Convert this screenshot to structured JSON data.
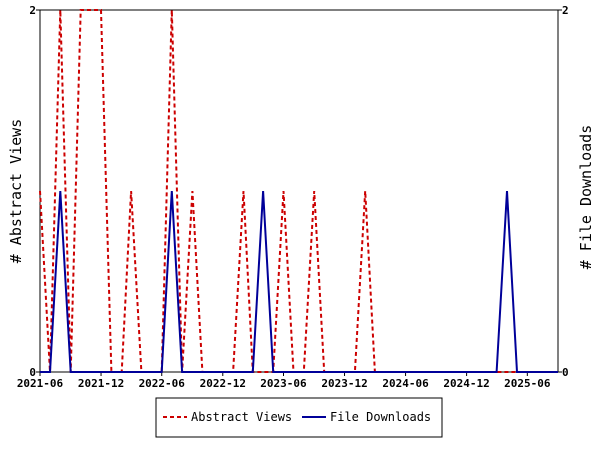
{
  "chart_data": {
    "type": "line",
    "ylabel": "# Abstract Views",
    "y2label": "# File Downloads",
    "ylim": [
      0,
      2
    ],
    "y2lim": [
      0,
      2
    ],
    "y_ticks": [
      "0",
      "2"
    ],
    "y2_ticks": [
      "0",
      "2"
    ],
    "xlim": [
      "2021-06-01",
      "2025-09-01"
    ],
    "x_tick_labels": [
      {
        "date": "2021-06-01",
        "label": "2021-06"
      },
      {
        "date": "2021-12-01",
        "label": "2021-12"
      },
      {
        "date": "2022-06-01",
        "label": "2022-06"
      },
      {
        "date": "2022-12-01",
        "label": "2022-12"
      },
      {
        "date": "2023-06-01",
        "label": "2023-06"
      },
      {
        "date": "2023-12-01",
        "label": "2023-12"
      },
      {
        "date": "2024-06-01",
        "label": "2024-06"
      },
      {
        "date": "2024-12-01",
        "label": "2024-12"
      },
      {
        "date": "2025-06-01",
        "label": "2025-06"
      }
    ],
    "legend_position": "bottom",
    "series": [
      {
        "name": "Abstract Views",
        "color": "#cc0000",
        "style": "dashed",
        "axis": "left",
        "points": [
          [
            "2021-06-01",
            1
          ],
          [
            "2021-07-01",
            0
          ],
          [
            "2021-08-01",
            2
          ],
          [
            "2021-09-01",
            0
          ],
          [
            "2021-10-01",
            2
          ],
          [
            "2021-11-01",
            2
          ],
          [
            "2021-12-01",
            2
          ],
          [
            "2022-01-01",
            0
          ],
          [
            "2022-02-01",
            0
          ],
          [
            "2022-03-01",
            1
          ],
          [
            "2022-04-01",
            0
          ],
          [
            "2022-05-01",
            0
          ],
          [
            "2022-06-01",
            0
          ],
          [
            "2022-07-01",
            2
          ],
          [
            "2022-08-01",
            0
          ],
          [
            "2022-09-01",
            1
          ],
          [
            "2022-10-01",
            0
          ],
          [
            "2022-11-01",
            0
          ],
          [
            "2022-12-01",
            0
          ],
          [
            "2023-01-01",
            0
          ],
          [
            "2023-02-01",
            1
          ],
          [
            "2023-03-01",
            0
          ],
          [
            "2023-04-01",
            0
          ],
          [
            "2023-05-01",
            0
          ],
          [
            "2023-06-01",
            1
          ],
          [
            "2023-07-01",
            0
          ],
          [
            "2023-08-01",
            0
          ],
          [
            "2023-09-01",
            1
          ],
          [
            "2023-10-01",
            0
          ],
          [
            "2023-11-01",
            0
          ],
          [
            "2023-12-01",
            0
          ],
          [
            "2024-01-01",
            0
          ],
          [
            "2024-02-01",
            1
          ],
          [
            "2024-03-01",
            0
          ],
          [
            "2024-04-01",
            0
          ],
          [
            "2024-05-01",
            0
          ],
          [
            "2024-06-01",
            0
          ],
          [
            "2024-07-01",
            0
          ],
          [
            "2024-08-01",
            0
          ],
          [
            "2024-09-01",
            0
          ],
          [
            "2024-10-01",
            0
          ],
          [
            "2024-11-01",
            0
          ],
          [
            "2024-12-01",
            0
          ],
          [
            "2025-01-01",
            0
          ],
          [
            "2025-02-01",
            0
          ],
          [
            "2025-03-01",
            0
          ],
          [
            "2025-04-01",
            0
          ],
          [
            "2025-05-01",
            0
          ],
          [
            "2025-06-01",
            0
          ],
          [
            "2025-07-01",
            0
          ],
          [
            "2025-08-01",
            0
          ],
          [
            "2025-09-01",
            0
          ]
        ]
      },
      {
        "name": "File Downloads",
        "color": "#000099",
        "style": "solid",
        "axis": "right",
        "points": [
          [
            "2021-06-01",
            0
          ],
          [
            "2021-07-01",
            0
          ],
          [
            "2021-08-01",
            1
          ],
          [
            "2021-09-01",
            0
          ],
          [
            "2021-10-01",
            0
          ],
          [
            "2021-11-01",
            0
          ],
          [
            "2021-12-01",
            0
          ],
          [
            "2022-01-01",
            0
          ],
          [
            "2022-02-01",
            0
          ],
          [
            "2022-03-01",
            0
          ],
          [
            "2022-04-01",
            0
          ],
          [
            "2022-05-01",
            0
          ],
          [
            "2022-06-01",
            0
          ],
          [
            "2022-07-01",
            1
          ],
          [
            "2022-08-01",
            0
          ],
          [
            "2022-09-01",
            0
          ],
          [
            "2022-10-01",
            0
          ],
          [
            "2022-11-01",
            0
          ],
          [
            "2022-12-01",
            0
          ],
          [
            "2023-01-01",
            0
          ],
          [
            "2023-02-01",
            0
          ],
          [
            "2023-03-01",
            0
          ],
          [
            "2023-04-01",
            1
          ],
          [
            "2023-05-01",
            0
          ],
          [
            "2023-06-01",
            0
          ],
          [
            "2023-07-01",
            0
          ],
          [
            "2023-08-01",
            0
          ],
          [
            "2023-09-01",
            0
          ],
          [
            "2023-10-01",
            0
          ],
          [
            "2023-11-01",
            0
          ],
          [
            "2023-12-01",
            0
          ],
          [
            "2024-01-01",
            0
          ],
          [
            "2024-02-01",
            0
          ],
          [
            "2024-03-01",
            0
          ],
          [
            "2024-04-01",
            0
          ],
          [
            "2024-05-01",
            0
          ],
          [
            "2024-06-01",
            0
          ],
          [
            "2024-07-01",
            0
          ],
          [
            "2024-08-01",
            0
          ],
          [
            "2024-09-01",
            0
          ],
          [
            "2024-10-01",
            0
          ],
          [
            "2024-11-01",
            0
          ],
          [
            "2024-12-01",
            0
          ],
          [
            "2025-01-01",
            0
          ],
          [
            "2025-02-01",
            0
          ],
          [
            "2025-03-01",
            0
          ],
          [
            "2025-04-01",
            1
          ],
          [
            "2025-05-01",
            0
          ],
          [
            "2025-06-01",
            0
          ],
          [
            "2025-07-01",
            0
          ],
          [
            "2025-08-01",
            0
          ],
          [
            "2025-09-01",
            0
          ]
        ]
      }
    ],
    "legend": [
      {
        "label": "Abstract Views",
        "color": "#cc0000",
        "style": "dashed"
      },
      {
        "label": "File Downloads",
        "color": "#000099",
        "style": "solid"
      }
    ]
  }
}
